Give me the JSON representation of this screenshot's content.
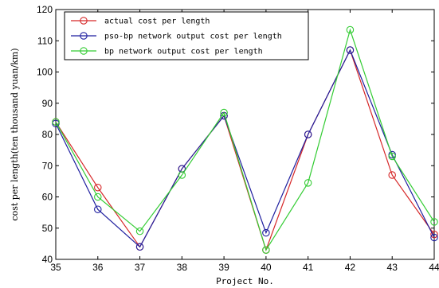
{
  "chart_data": {
    "type": "line",
    "xlabel": "Project No.",
    "ylabel": "cost per length(ten thousand yuan/km)",
    "x": [
      35,
      36,
      37,
      38,
      39,
      40,
      41,
      42,
      43,
      44
    ],
    "xlim": [
      35,
      44
    ],
    "ylim": [
      40,
      120
    ],
    "xticks": [
      "35",
      "36",
      "37",
      "38",
      "39",
      "40",
      "41",
      "42",
      "43",
      "44"
    ],
    "yticks": [
      "40",
      "50",
      "60",
      "70",
      "80",
      "90",
      "100",
      "110",
      "120"
    ],
    "grid": false,
    "legend_position": "top-left",
    "series": [
      {
        "name": "actual cost per length",
        "color": "#d62728",
        "marker": "circle",
        "values": [
          84,
          63,
          44,
          69,
          86,
          43,
          80,
          107,
          67,
          48
        ]
      },
      {
        "name": "pso-bp network output cost per length",
        "color": "#1f1f9f",
        "marker": "circle",
        "values": [
          83.5,
          56,
          44,
          69,
          86,
          48.5,
          80,
          107,
          73.5,
          47
        ]
      },
      {
        "name": "bp network output cost per length",
        "color": "#33cc33",
        "marker": "circle",
        "values": [
          84,
          60,
          49,
          67,
          87,
          43,
          64.5,
          113.5,
          73,
          52
        ]
      }
    ]
  }
}
